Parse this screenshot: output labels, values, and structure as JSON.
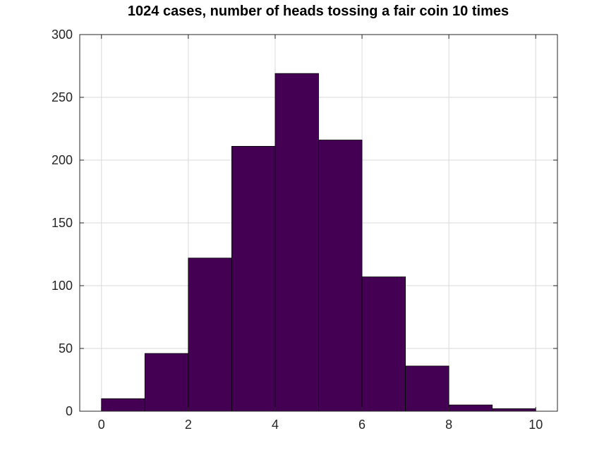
{
  "chart_data": {
    "type": "bar",
    "title": "1024 cases, number of heads tossing a fair coin 10 times",
    "xlabel": "",
    "ylabel": "",
    "bins": [
      {
        "x0": 0,
        "x1": 1,
        "count": 10
      },
      {
        "x0": 1,
        "x1": 2,
        "count": 46
      },
      {
        "x0": 2,
        "x1": 3,
        "count": 122
      },
      {
        "x0": 3,
        "x1": 4,
        "count": 211
      },
      {
        "x0": 4,
        "x1": 5,
        "count": 269
      },
      {
        "x0": 5,
        "x1": 6,
        "count": 216
      },
      {
        "x0": 6,
        "x1": 7,
        "count": 107
      },
      {
        "x0": 7,
        "x1": 8,
        "count": 36
      },
      {
        "x0": 8,
        "x1": 9,
        "count": 5
      },
      {
        "x0": 9,
        "x1": 10,
        "count": 2
      }
    ],
    "xlim": [
      -0.5,
      10.5
    ],
    "ylim": [
      0,
      300
    ],
    "xticks": [
      "0",
      "2",
      "4",
      "6",
      "8",
      "10"
    ],
    "yticks": [
      "0",
      "50",
      "100",
      "150",
      "200",
      "250",
      "300"
    ],
    "grid": true,
    "legend": "none",
    "colors": {
      "bar_fill": "#440154",
      "bar_edge": "#000000",
      "grid": "#d9d9d9",
      "axes": "#262626"
    }
  }
}
